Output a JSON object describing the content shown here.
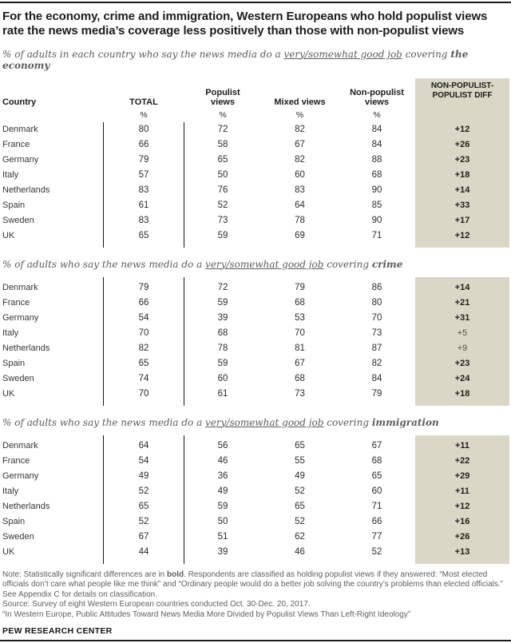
{
  "page": {
    "title": "For the economy, crime and immigration, Western Europeans who hold populist views rate the news media’s coverage less positively than those with non-populist views",
    "footer_brand": "PEW RESEARCH CENTER"
  },
  "colors": {
    "diff_column_bg": "#dbd7c6",
    "rule": "#1a1a1a",
    "subtitle_text": "#5c5c5e",
    "note_text": "#606060"
  },
  "header": {
    "country": "Country",
    "total": "TOTAL",
    "populist": "Populist views",
    "mixed": "Mixed views",
    "non_populist": "Non-populist views",
    "diff": "NON-POPULIST-POPULIST DIFF",
    "percent": "%"
  },
  "tables": [
    {
      "topic_id": "economy",
      "subtitle": {
        "prefix": "% of adults in each country who say the news media do a ",
        "underlined": "very/somewhat good job",
        "mid": " covering ",
        "topic": "the economy"
      },
      "rows": [
        {
          "country": "Denmark",
          "total": 80,
          "populist": 72,
          "mixed": 82,
          "non_populist": 84,
          "diff": "+12",
          "diff_bold": true
        },
        {
          "country": "France",
          "total": 66,
          "populist": 58,
          "mixed": 67,
          "non_populist": 84,
          "diff": "+26",
          "diff_bold": true
        },
        {
          "country": "Germany",
          "total": 79,
          "populist": 65,
          "mixed": 82,
          "non_populist": 88,
          "diff": "+23",
          "diff_bold": true
        },
        {
          "country": "Italy",
          "total": 57,
          "populist": 50,
          "mixed": 60,
          "non_populist": 68,
          "diff": "+18",
          "diff_bold": true
        },
        {
          "country": "Netherlands",
          "total": 83,
          "populist": 76,
          "mixed": 83,
          "non_populist": 90,
          "diff": "+14",
          "diff_bold": true
        },
        {
          "country": "Spain",
          "total": 61,
          "populist": 52,
          "mixed": 64,
          "non_populist": 85,
          "diff": "+33",
          "diff_bold": true
        },
        {
          "country": "Sweden",
          "total": 83,
          "populist": 73,
          "mixed": 78,
          "non_populist": 90,
          "diff": "+17",
          "diff_bold": true
        },
        {
          "country": "UK",
          "total": 65,
          "populist": 59,
          "mixed": 69,
          "non_populist": 71,
          "diff": "+12",
          "diff_bold": true
        }
      ]
    },
    {
      "topic_id": "crime",
      "subtitle": {
        "prefix": "% of adults who say the news media do a ",
        "underlined": "very/somewhat good job",
        "mid": " covering ",
        "topic": "crime"
      },
      "rows": [
        {
          "country": "Denmark",
          "total": 79,
          "populist": 72,
          "mixed": 79,
          "non_populist": 86,
          "diff": "+14",
          "diff_bold": true
        },
        {
          "country": "France",
          "total": 66,
          "populist": 59,
          "mixed": 68,
          "non_populist": 80,
          "diff": "+21",
          "diff_bold": true
        },
        {
          "country": "Germany",
          "total": 54,
          "populist": 39,
          "mixed": 53,
          "non_populist": 70,
          "diff": "+31",
          "diff_bold": true
        },
        {
          "country": "Italy",
          "total": 70,
          "populist": 68,
          "mixed": 70,
          "non_populist": 73,
          "diff": "+5",
          "diff_bold": false
        },
        {
          "country": "Netherlands",
          "total": 82,
          "populist": 78,
          "mixed": 81,
          "non_populist": 87,
          "diff": "+9",
          "diff_bold": false
        },
        {
          "country": "Spain",
          "total": 65,
          "populist": 59,
          "mixed": 67,
          "non_populist": 82,
          "diff": "+23",
          "diff_bold": true
        },
        {
          "country": "Sweden",
          "total": 74,
          "populist": 60,
          "mixed": 68,
          "non_populist": 84,
          "diff": "+24",
          "diff_bold": true
        },
        {
          "country": "UK",
          "total": 70,
          "populist": 61,
          "mixed": 73,
          "non_populist": 79,
          "diff": "+18",
          "diff_bold": true
        }
      ]
    },
    {
      "topic_id": "immigration",
      "subtitle": {
        "prefix": "% of adults who say the news media do a ",
        "underlined": "very/somewhat good job",
        "mid": " covering ",
        "topic": "immigration"
      },
      "rows": [
        {
          "country": "Denmark",
          "total": 64,
          "populist": 56,
          "mixed": 65,
          "non_populist": 67,
          "diff": "+11",
          "diff_bold": true
        },
        {
          "country": "France",
          "total": 54,
          "populist": 46,
          "mixed": 55,
          "non_populist": 68,
          "diff": "+22",
          "diff_bold": true
        },
        {
          "country": "Germany",
          "total": 49,
          "populist": 36,
          "mixed": 49,
          "non_populist": 65,
          "diff": "+29",
          "diff_bold": true
        },
        {
          "country": "Italy",
          "total": 52,
          "populist": 49,
          "mixed": 52,
          "non_populist": 60,
          "diff": "+11",
          "diff_bold": true
        },
        {
          "country": "Netherlands",
          "total": 65,
          "populist": 59,
          "mixed": 65,
          "non_populist": 71,
          "diff": "+12",
          "diff_bold": true
        },
        {
          "country": "Spain",
          "total": 52,
          "populist": 50,
          "mixed": 52,
          "non_populist": 66,
          "diff": "+16",
          "diff_bold": true
        },
        {
          "country": "Sweden",
          "total": 67,
          "populist": 51,
          "mixed": 62,
          "non_populist": 77,
          "diff": "+26",
          "diff_bold": true
        },
        {
          "country": "UK",
          "total": 44,
          "populist": 39,
          "mixed": 46,
          "non_populist": 52,
          "diff": "+13",
          "diff_bold": true
        }
      ]
    }
  ],
  "note": {
    "prefix": "Note: Statistically significant differences are in ",
    "bold_word": "bold",
    "rest": ". Respondents are classified as holding populist views if they answered: “Most elected officials don’t care what people like me think” and “Ordinary people would do a better job solving the country’s problems than elected officials.” See Appendix C for details on classification.",
    "source": "Source: Survey of eight Western European countries conducted Oct. 30-Dec. 20, 2017.",
    "report": "“In Western Europe, Public Attitudes Toward News Media More Divided by Populist Views Than Left-Right Ideology”"
  },
  "chart_data": [
    {
      "type": "table",
      "title": "% of adults in each country who say the news media do a very/somewhat good job covering the economy",
      "columns": [
        "Country",
        "TOTAL %",
        "Populist views %",
        "Mixed views %",
        "Non-populist views %",
        "NON-POPULIST-POPULIST DIFF"
      ],
      "rows": [
        [
          "Denmark",
          80,
          72,
          82,
          84,
          "+12"
        ],
        [
          "France",
          66,
          58,
          67,
          84,
          "+26"
        ],
        [
          "Germany",
          79,
          65,
          82,
          88,
          "+23"
        ],
        [
          "Italy",
          57,
          50,
          60,
          68,
          "+18"
        ],
        [
          "Netherlands",
          83,
          76,
          83,
          90,
          "+14"
        ],
        [
          "Spain",
          61,
          52,
          64,
          85,
          "+33"
        ],
        [
          "Sweden",
          83,
          73,
          78,
          90,
          "+17"
        ],
        [
          "UK",
          65,
          59,
          69,
          71,
          "+12"
        ]
      ]
    },
    {
      "type": "table",
      "title": "% of adults who say the news media do a very/somewhat good job covering crime",
      "columns": [
        "Country",
        "TOTAL %",
        "Populist views %",
        "Mixed views %",
        "Non-populist views %",
        "NON-POPULIST-POPULIST DIFF"
      ],
      "rows": [
        [
          "Denmark",
          79,
          72,
          79,
          86,
          "+14"
        ],
        [
          "France",
          66,
          59,
          68,
          80,
          "+21"
        ],
        [
          "Germany",
          54,
          39,
          53,
          70,
          "+31"
        ],
        [
          "Italy",
          70,
          68,
          70,
          73,
          "+5"
        ],
        [
          "Netherlands",
          82,
          78,
          81,
          87,
          "+9"
        ],
        [
          "Spain",
          65,
          59,
          67,
          82,
          "+23"
        ],
        [
          "Sweden",
          74,
          60,
          68,
          84,
          "+24"
        ],
        [
          "UK",
          70,
          61,
          73,
          79,
          "+18"
        ]
      ]
    },
    {
      "type": "table",
      "title": "% of adults who say the news media do a very/somewhat good job covering immigration",
      "columns": [
        "Country",
        "TOTAL %",
        "Populist views %",
        "Mixed views %",
        "Non-populist views %",
        "NON-POPULIST-POPULIST DIFF"
      ],
      "rows": [
        [
          "Denmark",
          64,
          56,
          65,
          67,
          "+11"
        ],
        [
          "France",
          54,
          46,
          55,
          68,
          "+22"
        ],
        [
          "Germany",
          49,
          36,
          49,
          65,
          "+29"
        ],
        [
          "Italy",
          52,
          49,
          52,
          60,
          "+11"
        ],
        [
          "Netherlands",
          65,
          59,
          65,
          71,
          "+12"
        ],
        [
          "Spain",
          52,
          50,
          52,
          66,
          "+16"
        ],
        [
          "Sweden",
          67,
          51,
          62,
          77,
          "+26"
        ],
        [
          "UK",
          44,
          39,
          46,
          52,
          "+13"
        ]
      ]
    }
  ]
}
